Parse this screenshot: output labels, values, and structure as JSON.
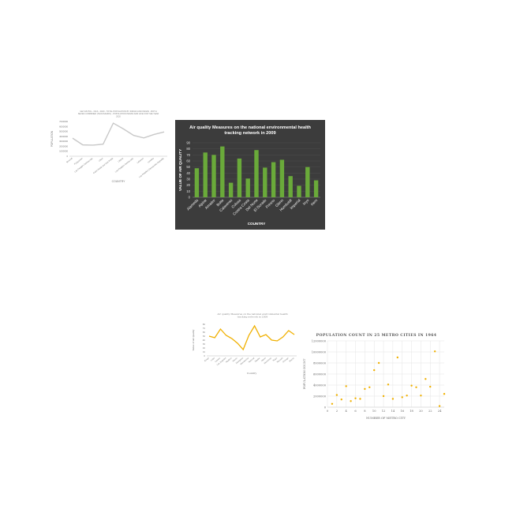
{
  "charts": [
    {
      "id": "pop-line",
      "type": "line",
      "title": "GEY-MUTOL - NGS - 2020 - TOTAL POPULATION BY INDIAN AND INDIAN - BOTH SEXES COMBINED (THOUSANDS) - POPULATION INDIAN AND LIFE FOR THE YEAR 2020",
      "xlabel": "COUNTRY",
      "ylabel": "POPULATION",
      "categories": [
        "Burundi",
        "Kyrgyzstan",
        "Lao People's Democratic",
        "Libya",
        "Cabo Verde and Sao Pablo",
        "Liberia",
        "Lao People's Democratic",
        "Lebanon",
        "Lesotho",
        "Lao People's Democratic Republic"
      ],
      "values": [
        3900000,
        2450000,
        2400000,
        2600000,
        7150000,
        5900000,
        4500000,
        3950000,
        4700000,
        5250000
      ],
      "yticks": [
        "7000000",
        "6000000",
        "5000000",
        "4000000",
        "3000000",
        "2000000",
        "1000000",
        "0"
      ],
      "ylim": [
        0,
        7500000
      ],
      "color": "#c8c8c8"
    },
    {
      "id": "aq-bar",
      "type": "bar",
      "title": "Air quality Measures on the national environmental health tracking network in 2009",
      "xlabel": "COUNTRY",
      "ylabel": "VALUE OF AIR QUALITY",
      "categories": [
        "Alameda",
        "Alpine",
        "Amador",
        "Butte",
        "Calaveras",
        "Colusa",
        "Contra Costa",
        "Del Norte",
        "El Dorado",
        "Fresno",
        "Glenn",
        "Humboldt",
        "Imperial",
        "Inyo",
        "Kern"
      ],
      "values": [
        48,
        74,
        70,
        84,
        24,
        64,
        31,
        78,
        49,
        58,
        62,
        35,
        19,
        50,
        28
      ],
      "yticks": [
        "90",
        "80",
        "70",
        "60",
        "50",
        "40",
        "30",
        "20",
        "10",
        "0"
      ],
      "ylim": [
        0,
        90
      ],
      "background": "#3c3c3c",
      "color": "#6aaa3a"
    },
    {
      "id": "aq-line",
      "type": "line",
      "title": "Air quality Measures on the national environmental health tracking network in 2009",
      "xlabel": "Country",
      "ylabel": "Value of air quality",
      "categories": [
        "Kings",
        "Lake",
        "Lassen",
        "Los Angeles",
        "Madera",
        "Marin",
        "Mariposa",
        "Mendocino",
        "Merced",
        "Modoc",
        "Mono",
        "Monterey",
        "Napa",
        "Nevada",
        "Orange",
        "Placer"
      ],
      "values": [
        50,
        46,
        68,
        52,
        44,
        32,
        16,
        52,
        76,
        48,
        54,
        40,
        38,
        48,
        64,
        54
      ],
      "yticks": [
        "80",
        "70",
        "60",
        "50",
        "40",
        "30",
        "20",
        "10",
        "0"
      ],
      "ylim": [
        0,
        80
      ],
      "color": "#f0b000"
    },
    {
      "id": "metro-scatter",
      "type": "scatter",
      "title": "POPULATION COUNT IN 25 METRO CITIES IN 1964",
      "xlabel": "NUMBER OF METRO CITY",
      "ylabel": "POPULATION COUNT",
      "x": [
        1,
        2,
        3,
        4,
        5,
        6,
        7,
        8,
        9,
        10,
        11,
        12,
        13,
        14,
        15,
        16,
        17,
        18,
        19,
        20,
        21,
        22,
        23,
        24,
        25
      ],
      "values": [
        600000,
        2200000,
        1400000,
        3800000,
        1100000,
        1600000,
        1500000,
        3300000,
        3600000,
        6700000,
        8000000,
        2000000,
        4100000,
        1500000,
        9000000,
        1800000,
        2100000,
        3900000,
        3600000,
        2100000,
        5100000,
        3700000,
        10100000,
        200000,
        2400000
      ],
      "xticks": [
        "0",
        "2",
        "4",
        "6",
        "8",
        "10",
        "12",
        "14",
        "16",
        "18",
        "20",
        "22",
        "24"
      ],
      "yticks": [
        "12000000",
        "10000000",
        "8000000",
        "6000000",
        "4000000",
        "2000000",
        "0"
      ],
      "xlim": [
        0,
        25
      ],
      "ylim": [
        0,
        12000000
      ],
      "color": "#f0b000"
    }
  ]
}
